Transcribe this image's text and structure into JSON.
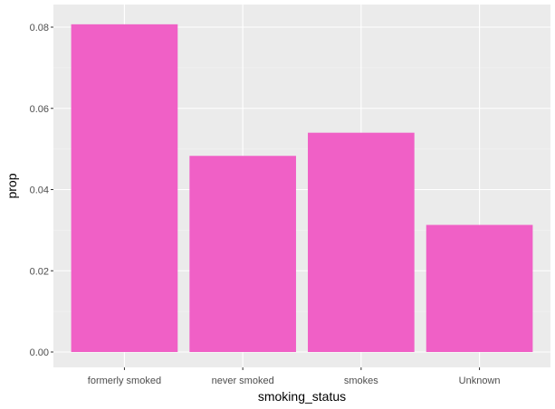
{
  "chart_data": {
    "type": "bar",
    "categories": [
      "formerly smoked",
      "never smoked",
      "smokes",
      "Unknown"
    ],
    "values": [
      0.0807,
      0.0483,
      0.054,
      0.0313
    ],
    "xlabel": "smoking_status",
    "ylabel": "prop",
    "ylim": [
      0,
      0.0848
    ],
    "yticks": [
      0.0,
      0.02,
      0.04,
      0.06,
      0.08
    ],
    "ytick_labels": [
      "0.00",
      "0.02",
      "0.04",
      "0.06",
      "0.08"
    ],
    "grid": true,
    "legend": "none",
    "colors": {
      "bar": "#f060c6",
      "panel_background": "#ebebeb",
      "grid_major": "#ffffff",
      "grid_minor": "#f5f5f5",
      "tick": "#333333"
    }
  }
}
